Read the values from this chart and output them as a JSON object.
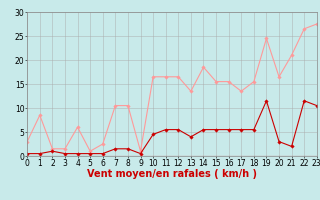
{
  "x": [
    0,
    1,
    2,
    3,
    4,
    5,
    6,
    7,
    8,
    9,
    10,
    11,
    12,
    13,
    14,
    15,
    16,
    17,
    18,
    19,
    20,
    21,
    22,
    23
  ],
  "y_rafales": [
    3.0,
    8.5,
    1.5,
    1.5,
    6.0,
    1.0,
    2.5,
    10.5,
    10.5,
    1.0,
    16.5,
    16.5,
    16.5,
    13.5,
    18.5,
    15.5,
    15.5,
    13.5,
    15.5,
    24.5,
    16.5,
    21.0,
    26.5,
    27.5
  ],
  "y_moyen": [
    0.5,
    0.5,
    1.0,
    0.5,
    0.5,
    0.5,
    0.5,
    1.5,
    1.5,
    0.5,
    4.5,
    5.5,
    5.5,
    4.0,
    5.5,
    5.5,
    5.5,
    5.5,
    5.5,
    11.5,
    3.0,
    2.0,
    11.5,
    10.5
  ],
  "bg_color": "#c8eaea",
  "grid_color": "#aaaaaa",
  "line_color_rafales": "#ff9999",
  "line_color_moyen": "#cc0000",
  "xlabel": "Vent moyen/en rafales ( km/h )",
  "ylim": [
    0,
    30
  ],
  "xlim": [
    0,
    23
  ],
  "yticks": [
    0,
    5,
    10,
    15,
    20,
    25,
    30
  ],
  "xticks": [
    0,
    1,
    2,
    3,
    4,
    5,
    6,
    7,
    8,
    9,
    10,
    11,
    12,
    13,
    14,
    15,
    16,
    17,
    18,
    19,
    20,
    21,
    22,
    23
  ],
  "xlabel_color": "#cc0000",
  "xlabel_fontsize": 7,
  "tick_fontsize": 5.5
}
